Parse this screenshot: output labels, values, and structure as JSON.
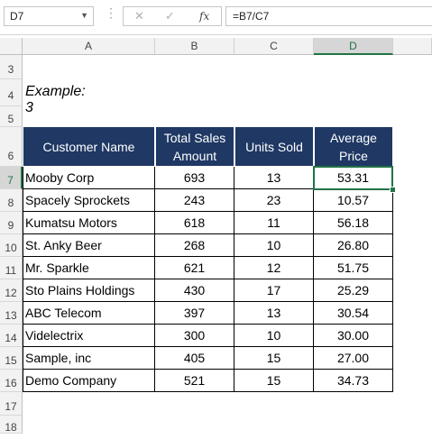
{
  "name_box": "D7",
  "formula": "=B7/C7",
  "icons": {
    "cancel": "✕",
    "enter": "✓",
    "function": "fx",
    "menu": "⋮"
  },
  "columns": [
    "A",
    "B",
    "C",
    "D"
  ],
  "selected_column": "D",
  "selected_row": "7",
  "rows": [
    "3",
    "4",
    "5",
    "6",
    "7",
    "8",
    "9",
    "10",
    "11",
    "12",
    "13",
    "14",
    "15",
    "16",
    "17",
    "18"
  ],
  "example_label": "Example: 3",
  "table": {
    "headers": [
      "Customer Name",
      "Total Sales Amount",
      "Units Sold",
      "Average Price"
    ],
    "rows": [
      [
        "Mooby Corp",
        "693",
        "13",
        "53.31"
      ],
      [
        "Spacely Sprockets",
        "243",
        "23",
        "10.57"
      ],
      [
        "Kumatsu Motors",
        "618",
        "11",
        "56.18"
      ],
      [
        "St. Anky Beer",
        "268",
        "10",
        "26.80"
      ],
      [
        "Mr. Sparkle",
        "621",
        "12",
        "51.75"
      ],
      [
        "Sto Plains Holdings",
        "430",
        "17",
        "25.29"
      ],
      [
        "ABC Telecom",
        "397",
        "13",
        "30.54"
      ],
      [
        "Videlectrix",
        "300",
        "10",
        "30.00"
      ],
      [
        "Sample, inc",
        "405",
        "15",
        "27.00"
      ],
      [
        "Demo Company",
        "521",
        "15",
        "34.73"
      ]
    ]
  },
  "colors": {
    "header_fill": "#1f3864",
    "selection": "#217346"
  }
}
